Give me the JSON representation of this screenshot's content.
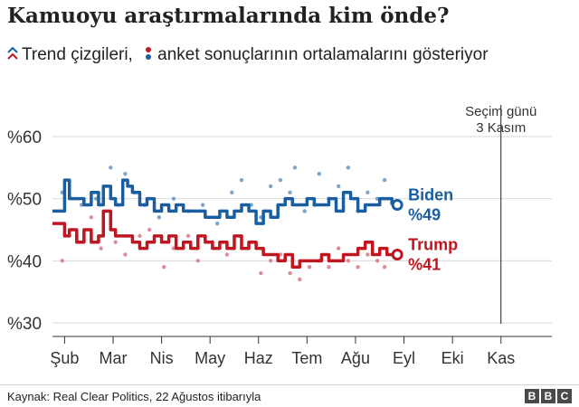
{
  "title": "Kamuoyu araştırmalarında kim önde?",
  "subtitle": {
    "trend_label": "Trend çizgileri,",
    "poll_label": "anket sonuçlarının ortalamalarını gösteriyor"
  },
  "source": "Kaynak: Real Clear Politics, 22 Ağustos itibarıyla",
  "logo": [
    "B",
    "B",
    "C"
  ],
  "colors": {
    "biden": "#1b5ea0",
    "trump": "#c0161f",
    "biden_dot": "#5b8fc0",
    "trump_dot": "#d6707a",
    "grid": "#d9d9d9",
    "axis": "#333333"
  },
  "chart_data": {
    "type": "line",
    "ylim": [
      30,
      62
    ],
    "yticks": [
      30,
      40,
      50,
      60
    ],
    "ytick_labels": [
      "%30",
      "%40",
      "%50",
      "%60"
    ],
    "xlim": [
      0,
      10.3
    ],
    "xticks": [
      0.25,
      1.25,
      2.25,
      3.25,
      4.25,
      5.25,
      6.25,
      7.25,
      8.25,
      9.25
    ],
    "xtick_labels": [
      "Şub",
      "Mar",
      "Nis",
      "May",
      "Haz",
      "Tem",
      "Ağu",
      "Eyl",
      "Eki",
      "Kas"
    ],
    "election_x": 9.25,
    "election_label": [
      "Seçim günü",
      "3 Kasım"
    ],
    "series": [
      {
        "name": "Biden",
        "final_label": "%49",
        "x": [
          0.0,
          0.15,
          0.25,
          0.35,
          0.5,
          0.65,
          0.8,
          0.95,
          1.05,
          1.2,
          1.3,
          1.45,
          1.55,
          1.65,
          1.8,
          1.95,
          2.1,
          2.25,
          2.4,
          2.55,
          2.7,
          2.85,
          3.0,
          3.15,
          3.3,
          3.45,
          3.6,
          3.75,
          3.9,
          4.05,
          4.2,
          4.35,
          4.5,
          4.65,
          4.8,
          4.95,
          5.1,
          5.25,
          5.4,
          5.55,
          5.7,
          5.85,
          6.0,
          6.15,
          6.3,
          6.45,
          6.6,
          6.75,
          6.9,
          7.0
        ],
        "values": [
          48,
          48,
          53,
          50,
          50,
          49,
          51,
          49,
          52,
          50,
          49,
          53,
          52,
          51,
          49,
          50,
          48,
          49,
          48,
          49,
          48,
          48,
          48,
          47,
          47,
          48,
          47,
          48,
          49,
          48,
          46,
          48,
          47,
          49,
          50,
          49,
          49,
          50,
          49,
          49,
          50,
          48,
          51,
          50,
          48,
          49,
          49,
          50,
          50,
          49
        ]
      },
      {
        "name": "Trump",
        "final_label": "%41",
        "x": [
          0.0,
          0.15,
          0.25,
          0.35,
          0.5,
          0.65,
          0.8,
          0.95,
          1.05,
          1.2,
          1.3,
          1.45,
          1.55,
          1.65,
          1.8,
          1.95,
          2.1,
          2.25,
          2.4,
          2.55,
          2.7,
          2.85,
          3.0,
          3.15,
          3.3,
          3.45,
          3.6,
          3.75,
          3.9,
          4.05,
          4.2,
          4.35,
          4.5,
          4.65,
          4.8,
          4.95,
          5.1,
          5.25,
          5.4,
          5.55,
          5.7,
          5.85,
          6.0,
          6.15,
          6.3,
          6.45,
          6.6,
          6.75,
          6.9,
          7.0
        ],
        "values": [
          46,
          46,
          44,
          45,
          43,
          45,
          43,
          44,
          48,
          45,
          44,
          44,
          44,
          43,
          42,
          43,
          44,
          43,
          44,
          42,
          43,
          42,
          44,
          43,
          42,
          43,
          42,
          44,
          42,
          43,
          42,
          41,
          41,
          40,
          41,
          39,
          40,
          40,
          40,
          41,
          40,
          40,
          41,
          41,
          42,
          43,
          41,
          42,
          41,
          41
        ]
      }
    ],
    "polls": [
      {
        "name": "Biden",
        "x": [
          0.2,
          0.6,
          0.9,
          1.2,
          1.35,
          1.5,
          1.7,
          1.9,
          2.2,
          2.5,
          2.8,
          3.1,
          3.4,
          3.7,
          3.9,
          4.1,
          4.3,
          4.5,
          4.7,
          4.9,
          5.0,
          5.2,
          5.4,
          5.5,
          5.7,
          5.9,
          6.1,
          6.3,
          6.5,
          6.7,
          6.85
        ],
        "values": [
          51,
          49,
          50,
          55,
          49,
          54,
          51,
          49,
          47,
          50,
          48,
          49,
          46,
          51,
          53,
          49,
          47,
          52,
          53,
          51,
          55,
          48,
          49,
          54,
          50,
          52,
          55,
          48,
          51,
          50,
          53
        ]
      },
      {
        "name": "Trump",
        "x": [
          0.2,
          0.5,
          0.8,
          1.0,
          1.3,
          1.5,
          1.8,
          2.0,
          2.3,
          2.5,
          2.8,
          3.0,
          3.3,
          3.6,
          3.9,
          4.1,
          4.3,
          4.5,
          4.7,
          4.9,
          5.1,
          5.3,
          5.5,
          5.7,
          5.9,
          6.1,
          6.3,
          6.5,
          6.7,
          6.85
        ],
        "values": [
          40,
          44,
          47,
          42,
          43,
          41,
          44,
          45,
          39,
          42,
          44,
          40,
          43,
          41,
          42,
          43,
          38,
          40,
          41,
          38,
          37,
          39,
          40,
          39,
          42,
          40,
          39,
          41,
          40,
          39
        ]
      }
    ]
  }
}
